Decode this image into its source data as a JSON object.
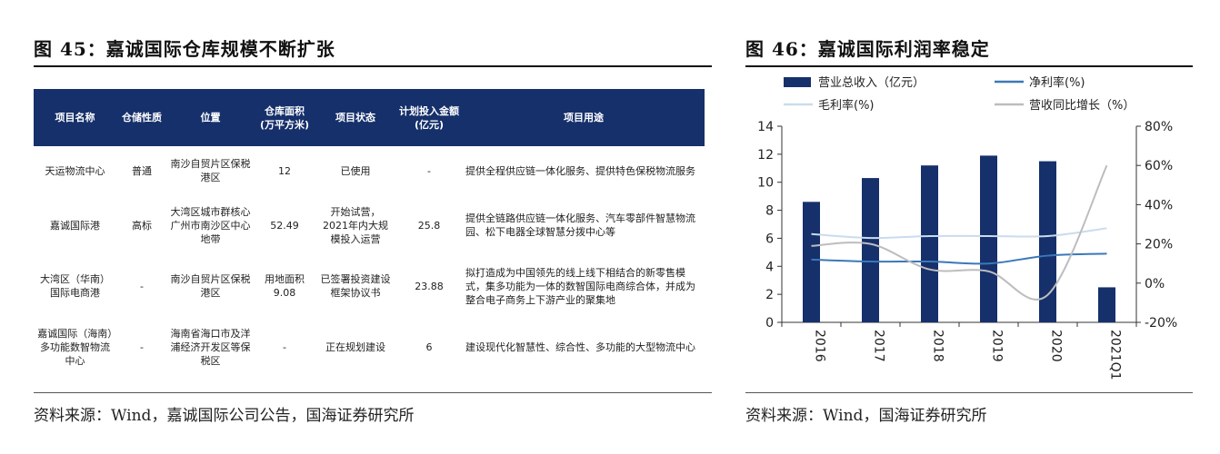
{
  "left": {
    "title": "图 45：嘉诚国际仓库规模不断扩张",
    "table": {
      "headers": [
        "项目名称",
        "仓储性质",
        "位置",
        "仓库面积\n(万平方米)",
        "项目状态",
        "计划投入金额\n(亿元)",
        "项目用途"
      ],
      "rows": [
        [
          "天运物流中心",
          "普通",
          "南沙自贸片区保税港区",
          "12",
          "已使用",
          "-",
          "提供全程供应链一体化服务、提供特色保税物流服务"
        ],
        [
          "嘉诚国际港",
          "高标",
          "大湾区城市群核心广州市南沙区中心地带",
          "52.49",
          "开始试营，2021年内大规模投入运营",
          "25.8",
          "提供全链路供应链一体化服务、汽车零部件智慧物流园、松下电器全球智慧分拨中心等"
        ],
        [
          "大湾区（华南）国际电商港",
          "-",
          "南沙自贸片区保税港区",
          "用地面积9.08",
          "已签署投资建设框架协议书",
          "23.88",
          "拟打造成为中国领先的线上线下相结合的新零售模式，集多功能为一体的数智国际电商综合体，并成为整合电子商务上下游产业的聚集地"
        ],
        [
          "嘉诚国际（海南）多功能数智物流中心",
          "-",
          "海南省海口市及洋浦经济开发区等保税区",
          "-",
          "正在规划建设",
          "6",
          "建设现代化智慧性、综合性、多功能的大型物流中心"
        ]
      ]
    },
    "source": "资料来源：Wind，嘉诚国际公司公告，国海证券研究所"
  },
  "right": {
    "title": "图 46：嘉诚国际利润率稳定",
    "source": "资料来源：Wind，国海证券研究所"
  },
  "chart_data": {
    "type": "bar",
    "categories": [
      "2016",
      "2017",
      "2018",
      "2019",
      "2020",
      "2021Q1"
    ],
    "series": [
      {
        "name": "营业总收入（亿元）",
        "type": "bar",
        "axis": "left",
        "color": "#16306b",
        "values": [
          8.6,
          10.3,
          11.2,
          11.9,
          11.5,
          2.5
        ]
      },
      {
        "name": "净利率(%)",
        "type": "line",
        "axis": "right",
        "color": "#3b78b8",
        "values": [
          12,
          11,
          11,
          10,
          14,
          15
        ]
      },
      {
        "name": "毛利率(%)",
        "type": "line",
        "axis": "right",
        "color": "#c9dcee",
        "values": [
          25,
          23,
          24,
          24,
          24,
          28
        ]
      },
      {
        "name": "营收同比增长（%）",
        "type": "line",
        "axis": "right",
        "color": "#bdbdbd",
        "values": [
          19,
          20,
          7,
          6,
          -6,
          60
        ]
      }
    ],
    "yleft": {
      "min": 0,
      "max": 14,
      "ticks": [
        "0",
        "2",
        "4",
        "6",
        "8",
        "10",
        "12",
        "14"
      ]
    },
    "yright": {
      "min": -20,
      "max": 80,
      "ticks": [
        "-20%",
        "0%",
        "20%",
        "40%",
        "60%",
        "80%"
      ]
    },
    "legend_position": "top",
    "grid": false
  }
}
